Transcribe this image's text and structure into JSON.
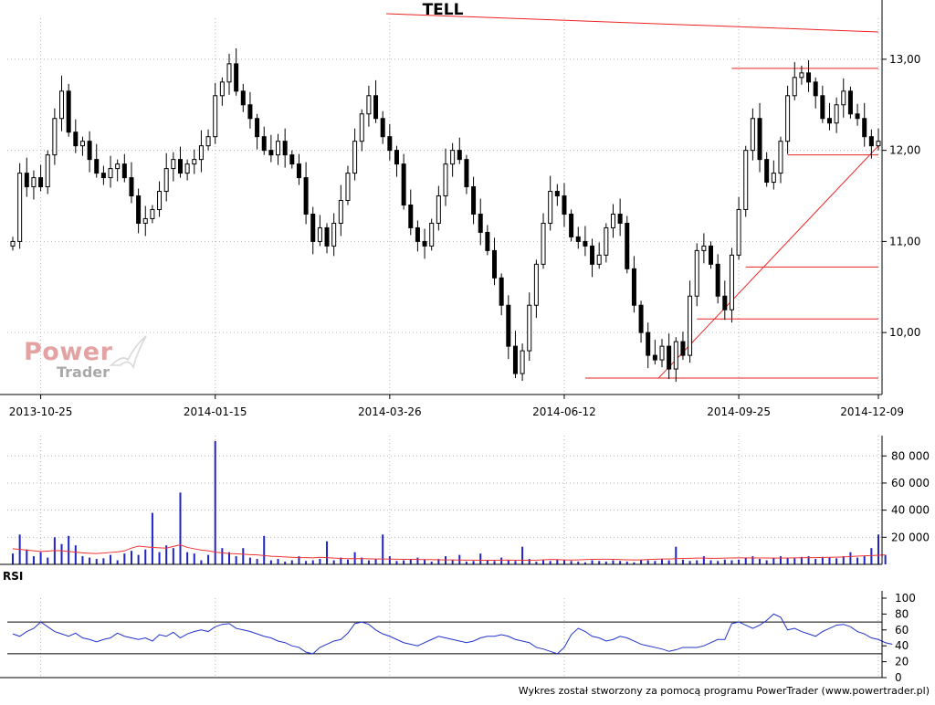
{
  "footer": {
    "credit": "Wykres został stworzony za pomocą programu PowerTrader (www.powertrader.pl)"
  },
  "watermark": {
    "line1": "Power",
    "line2": "Trader"
  },
  "chart_data": [
    {
      "type": "candlestick",
      "title": "TELL",
      "x_tick_labels": [
        "2013-10-25",
        "2014-01-15",
        "2014-03-26",
        "2014-06-12",
        "2014-09-25",
        "2014-12-09"
      ],
      "y_tick_labels": [
        "10,00",
        "11,00",
        "12,00",
        "13,00"
      ],
      "y_ticks": [
        10,
        11,
        12,
        13
      ],
      "ylim": [
        9.32,
        13.45
      ],
      "grid": true,
      "candle_colors": {
        "up": "#ffffff",
        "down": "#000000",
        "outline": "#000000"
      },
      "trendline_color": "#ee2222",
      "closes": [
        11.0,
        11.75,
        11.6,
        11.7,
        11.6,
        11.95,
        12.35,
        12.65,
        12.2,
        12.05,
        12.1,
        11.9,
        11.75,
        11.7,
        11.8,
        11.85,
        11.7,
        11.5,
        11.2,
        11.25,
        11.35,
        11.55,
        11.8,
        11.9,
        11.75,
        11.85,
        11.9,
        12.05,
        12.15,
        12.6,
        12.75,
        12.95,
        12.65,
        12.5,
        12.35,
        12.15,
        12.0,
        11.95,
        12.1,
        11.95,
        11.85,
        11.7,
        11.3,
        11.0,
        11.15,
        10.95,
        11.2,
        11.45,
        11.75,
        12.1,
        12.4,
        12.6,
        12.35,
        12.15,
        12.0,
        11.85,
        11.4,
        11.15,
        11.0,
        10.95,
        11.2,
        11.5,
        11.85,
        12.0,
        11.9,
        11.6,
        11.3,
        11.1,
        10.9,
        10.6,
        10.3,
        9.85,
        9.55,
        9.8,
        10.3,
        10.75,
        11.2,
        11.55,
        11.5,
        11.3,
        11.05,
        11.0,
        10.95,
        10.75,
        10.85,
        11.15,
        11.3,
        11.2,
        10.7,
        10.3,
        10.0,
        9.75,
        9.7,
        9.85,
        9.6,
        9.9,
        9.75,
        10.4,
        10.9,
        10.95,
        10.75,
        10.4,
        10.25,
        10.85,
        11.35,
        12.0,
        12.35,
        11.9,
        11.65,
        11.75,
        12.1,
        12.6,
        12.8,
        12.85,
        12.75,
        12.6,
        12.35,
        12.3,
        12.5,
        12.65,
        12.4,
        12.35,
        12.15,
        12.05,
        12.1
      ],
      "volume": {
        "y_tick_labels": [
          "20 000",
          "40 000",
          "60 000",
          "80 000"
        ],
        "y_ticks": [
          20000,
          40000,
          60000,
          80000
        ],
        "ylim": [
          0,
          95000
        ],
        "bar_color": "#1f24c8",
        "ma_color": "#ee3333",
        "values": [
          8000,
          22000,
          11000,
          6000,
          9000,
          5000,
          20000,
          15000,
          21000,
          14000,
          6000,
          5000,
          4000,
          4500,
          7000,
          3000,
          8000,
          10000,
          7000,
          11000,
          38000,
          9000,
          14000,
          12000,
          53000,
          9000,
          8000,
          3000,
          7000,
          91000,
          12000,
          9000,
          6000,
          12000,
          5000,
          4000,
          21000,
          3000,
          4000,
          2000,
          3000,
          6000,
          2500,
          3000,
          4000,
          17000,
          3000,
          5000,
          3500,
          9000,
          5000,
          3000,
          4000,
          22000,
          6000,
          2500,
          3000,
          4000,
          5000,
          3500,
          2000,
          4000,
          6000,
          3000,
          7000,
          2000,
          2500,
          8000,
          3000,
          2500,
          5000,
          3000,
          2500,
          13000,
          4000,
          2000,
          3000,
          2500,
          3500,
          3000,
          2500,
          2000,
          1500,
          3000,
          2500,
          2000,
          3000,
          2500,
          2000,
          1500,
          3500,
          3000,
          2500,
          4000,
          3000,
          13000,
          3500,
          2500,
          3000,
          6000,
          3000,
          2500,
          3500,
          3000,
          3500,
          5000,
          6000,
          4000,
          3000,
          5000,
          6000,
          5000,
          4500,
          5500,
          6000,
          4000,
          5500,
          5000,
          4500,
          6000,
          9000,
          5000,
          6000,
          12000,
          22000,
          7000
        ],
        "ma_values": [
          11500,
          11000,
          10500,
          10000,
          9500,
          9800,
          10200,
          10000,
          9500,
          9000,
          8500,
          8200,
          8000,
          8300,
          8800,
          9200,
          10000,
          12000,
          13500,
          13000,
          12500,
          12200,
          12000,
          13200,
          14500,
          12500,
          11500,
          10500,
          10000,
          9000,
          8500,
          8000,
          7800,
          7500,
          7200,
          7000,
          6500,
          6000,
          5800,
          5500,
          5200,
          5000,
          5000,
          4800,
          5200,
          5000,
          4600,
          4400,
          4200,
          4300,
          4200,
          4100,
          4000,
          4000,
          3900,
          3800,
          3700,
          3700,
          3600,
          3500,
          3500,
          3400,
          3300,
          3300,
          3200,
          3100,
          3100,
          3000,
          3000,
          3000,
          3100,
          3200,
          3000,
          3000,
          3000,
          3100,
          3400,
          3600,
          3500,
          3300,
          3200,
          3300,
          3500,
          3700,
          3800,
          3800,
          3700,
          3500,
          3400,
          3300,
          3300,
          3600,
          3800,
          4000,
          4000,
          4200,
          4400,
          4500,
          4600,
          4600,
          4500,
          4500,
          4600,
          4700,
          4800,
          4800,
          4700,
          4700,
          4700,
          4600,
          4600,
          4700,
          4800,
          4900,
          5000,
          5000,
          5100,
          5200,
          5300,
          5500,
          5800,
          6100,
          6300,
          6500,
          6700,
          7000
        ]
      },
      "rsi": {
        "label": "RSI",
        "y_tick_labels": [
          "0",
          "20",
          "40",
          "60",
          "80",
          "100"
        ],
        "y_ticks": [
          0,
          20,
          40,
          60,
          80,
          100
        ],
        "ylim": [
          0,
          100
        ],
        "levels": [
          30,
          70
        ],
        "line_color": "#2233cc",
        "values": [
          55,
          52,
          58,
          62,
          70,
          64,
          58,
          55,
          52,
          56,
          50,
          48,
          45,
          48,
          50,
          56,
          52,
          50,
          48,
          50,
          46,
          54,
          52,
          57,
          50,
          55,
          58,
          60,
          58,
          64,
          67,
          68,
          62,
          60,
          58,
          55,
          52,
          50,
          46,
          44,
          40,
          38,
          32,
          30,
          38,
          42,
          46,
          48,
          56,
          68,
          70,
          67,
          60,
          55,
          52,
          48,
          44,
          42,
          40,
          44,
          48,
          52,
          50,
          48,
          46,
          44,
          46,
          50,
          52,
          52,
          54,
          52,
          48,
          46,
          44,
          38,
          36,
          33,
          30,
          38,
          54,
          62,
          58,
          52,
          50,
          46,
          48,
          52,
          50,
          46,
          42,
          40,
          38,
          36,
          33,
          35,
          38,
          38,
          38,
          40,
          44,
          48,
          48,
          68,
          70,
          66,
          62,
          66,
          72,
          80,
          76,
          60,
          62,
          58,
          55,
          52,
          58,
          62,
          66,
          67,
          64,
          58,
          55,
          50,
          48,
          44,
          42
        ]
      }
    }
  ]
}
